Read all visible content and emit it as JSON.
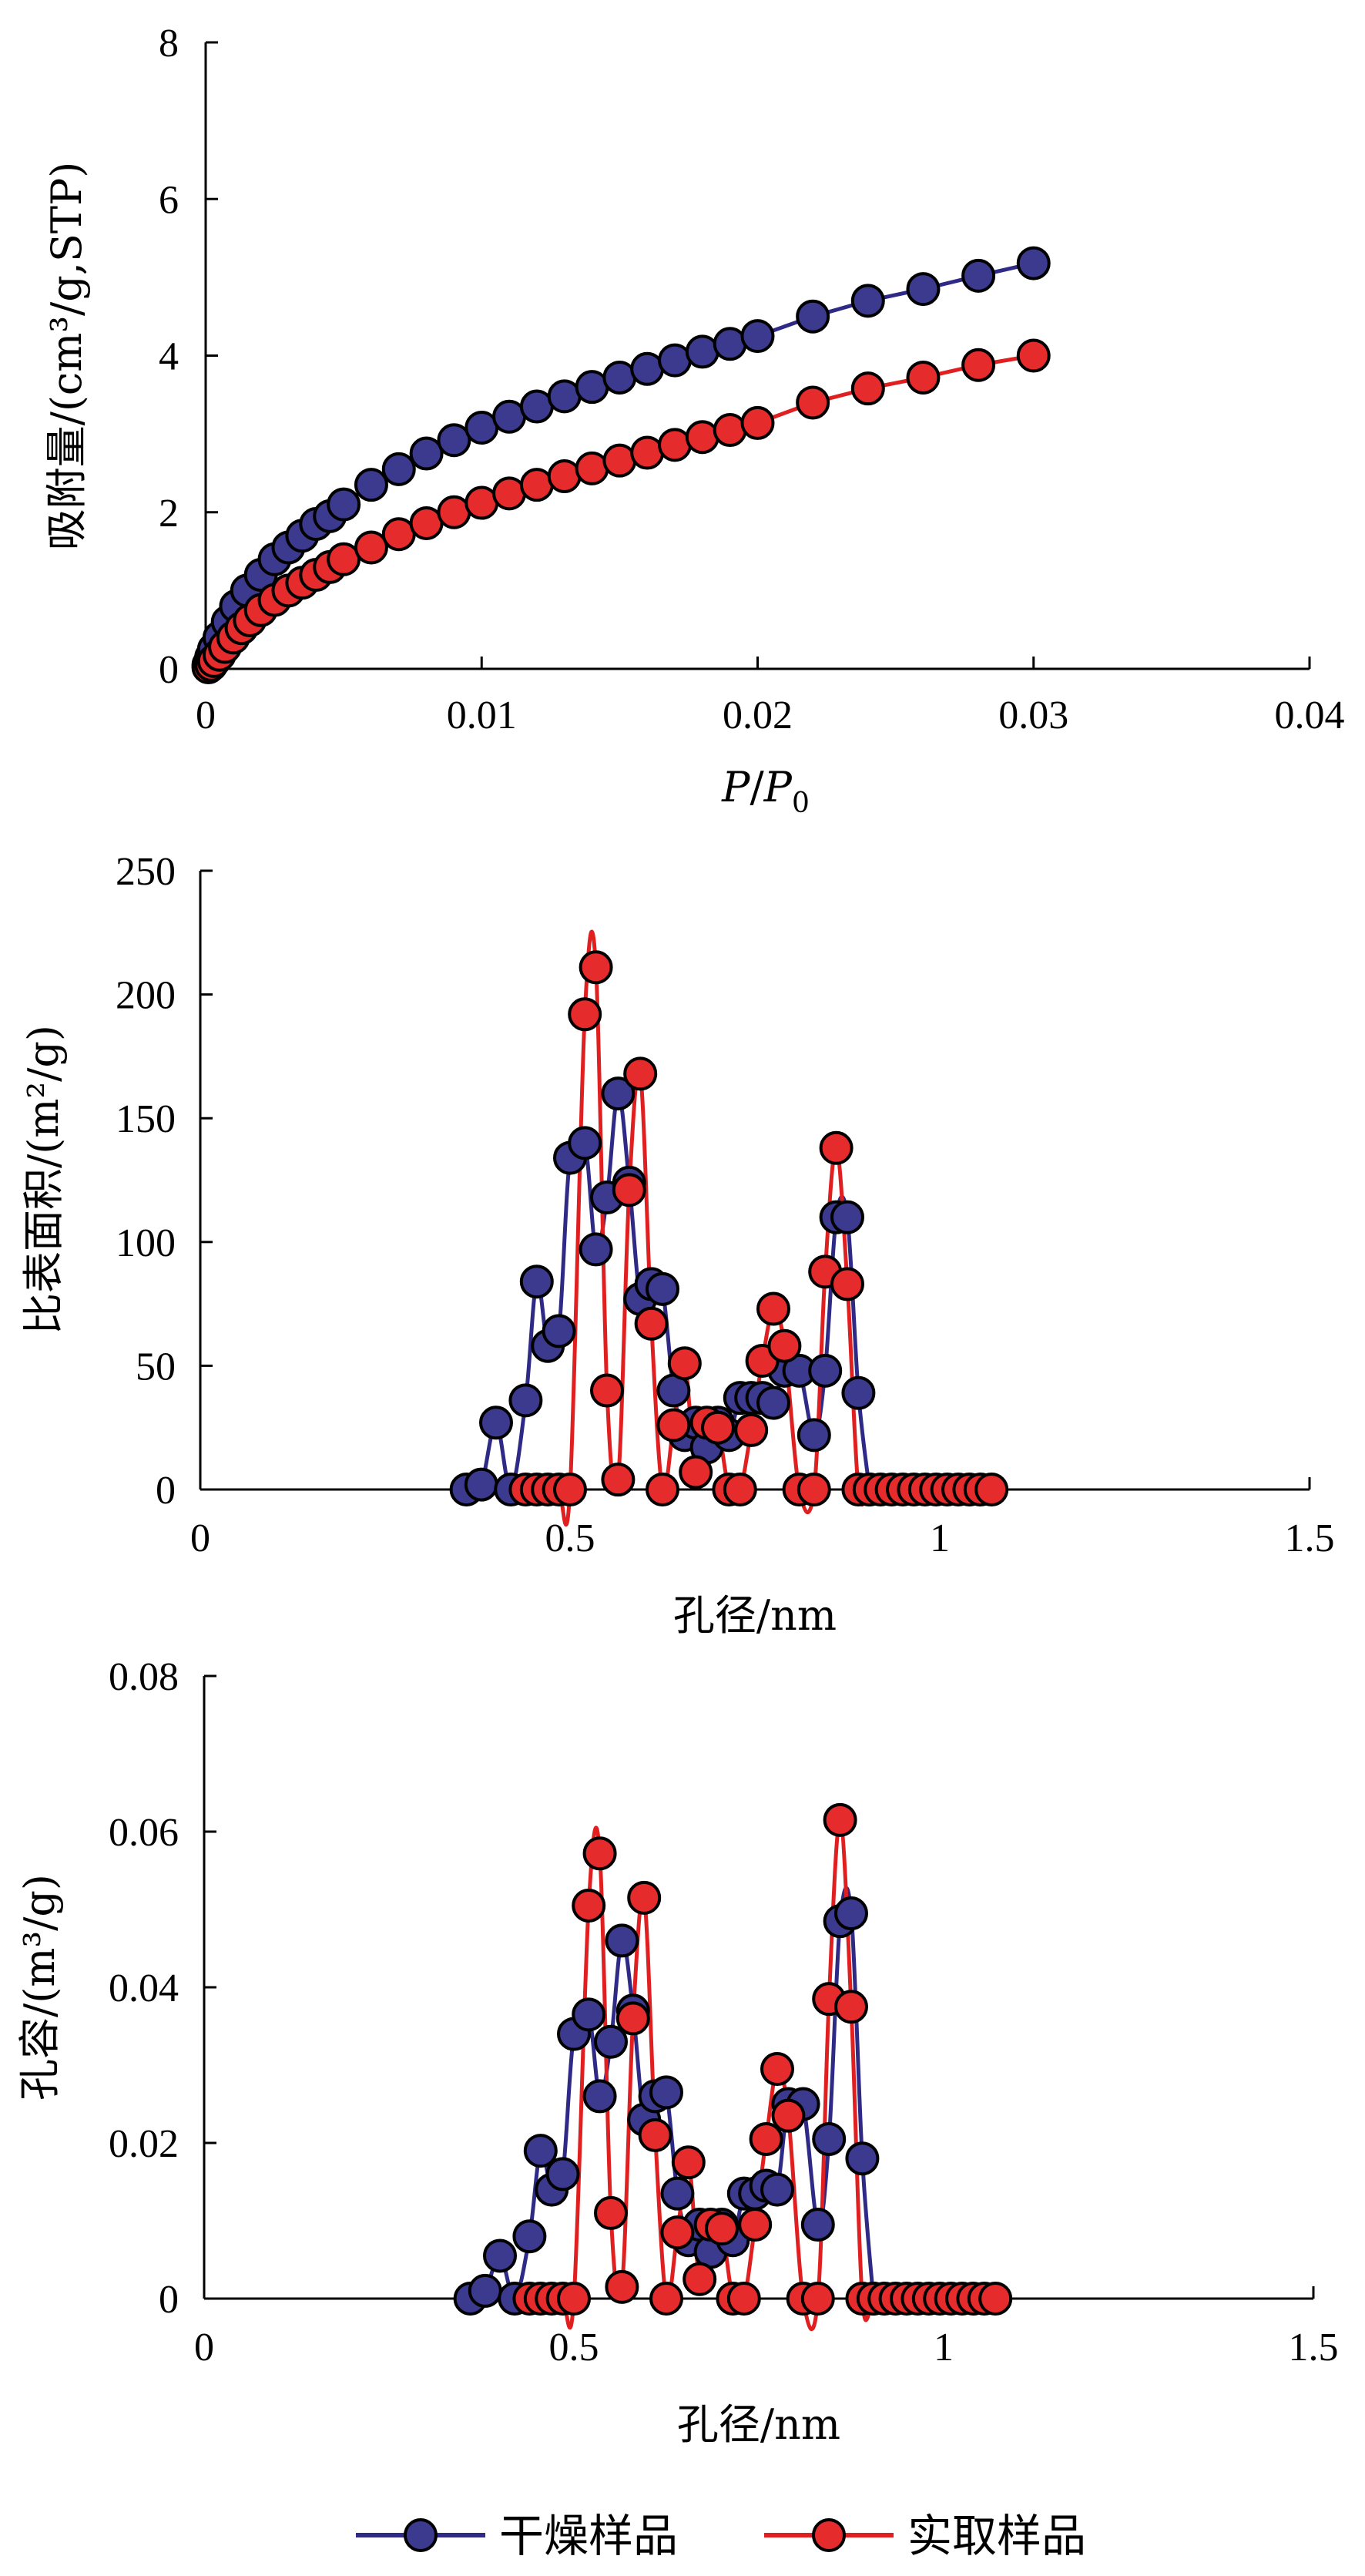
{
  "colors": {
    "dry": "#3b3a8f",
    "dry_line": "#2e2a86",
    "wet": "#e52b2b",
    "wet_line": "#e02020",
    "marker_edge": "#000000"
  },
  "legend": {
    "items": [
      {
        "label": "干燥样品",
        "series": "dry"
      },
      {
        "label": "实取样品",
        "series": "wet"
      }
    ]
  },
  "chart_data": [
    {
      "type": "scatter",
      "name": "adsorption-isotherm",
      "xlabel_parts": [
        "P",
        "/",
        "P",
        "0"
      ],
      "xlabel": "P/P0",
      "ylabel": "吸附量/(cm³/g,STP)",
      "xlim": [
        0,
        0.04
      ],
      "ylim": [
        0,
        8
      ],
      "xticks": [
        0,
        0.01,
        0.02,
        0.03,
        0.04
      ],
      "xtick_labels": [
        "0",
        "0.01",
        "0.02",
        "0.03",
        "0.04"
      ],
      "yticks": [
        0,
        2,
        4,
        6,
        8
      ],
      "ytick_labels": [
        "0",
        "2",
        "4",
        "6",
        "8"
      ],
      "series": [
        {
          "key": "dry",
          "name": "干燥样品",
          "x": [
            0.0001,
            0.0002,
            0.0003,
            0.0005,
            0.0008,
            0.0011,
            0.0015,
            0.002,
            0.0025,
            0.003,
            0.0035,
            0.004,
            0.0045,
            0.005,
            0.006,
            0.007,
            0.008,
            0.009,
            0.01,
            0.011,
            0.012,
            0.013,
            0.014,
            0.015,
            0.016,
            0.017,
            0.018,
            0.019,
            0.02,
            0.022,
            0.024,
            0.026,
            0.028,
            0.03
          ],
          "y": [
            0.05,
            0.15,
            0.25,
            0.4,
            0.6,
            0.8,
            1.0,
            1.2,
            1.4,
            1.55,
            1.7,
            1.85,
            1.95,
            2.1,
            2.35,
            2.55,
            2.75,
            2.92,
            3.08,
            3.22,
            3.35,
            3.48,
            3.6,
            3.72,
            3.83,
            3.94,
            4.05,
            4.15,
            4.25,
            4.5,
            4.7,
            4.85,
            5.02,
            5.18
          ]
        },
        {
          "key": "wet",
          "name": "实取样品",
          "x": [
            0.0001,
            0.0002,
            0.0003,
            0.0005,
            0.0007,
            0.001,
            0.0013,
            0.0016,
            0.002,
            0.0025,
            0.003,
            0.0035,
            0.004,
            0.0045,
            0.005,
            0.006,
            0.007,
            0.008,
            0.009,
            0.01,
            0.011,
            0.012,
            0.013,
            0.014,
            0.015,
            0.016,
            0.017,
            0.018,
            0.019,
            0.02,
            0.022,
            0.024,
            0.026,
            0.028,
            0.03
          ],
          "y": [
            0.02,
            0.05,
            0.1,
            0.18,
            0.28,
            0.4,
            0.52,
            0.62,
            0.75,
            0.88,
            1.0,
            1.1,
            1.2,
            1.3,
            1.4,
            1.55,
            1.72,
            1.86,
            2.0,
            2.12,
            2.24,
            2.35,
            2.46,
            2.56,
            2.66,
            2.76,
            2.86,
            2.96,
            3.05,
            3.14,
            3.4,
            3.58,
            3.72,
            3.88,
            4.0
          ]
        }
      ]
    },
    {
      "type": "line",
      "name": "specific-surface-area",
      "xlabel": "孔径/nm",
      "ylabel": "比表面积/(m²/g)",
      "xlim": [
        0,
        1.5
      ],
      "ylim": [
        0,
        250
      ],
      "xticks": [
        0,
        0.5,
        1,
        1.5
      ],
      "xtick_labels": [
        "0",
        "0.5",
        "1",
        "1.5"
      ],
      "yticks": [
        0,
        50,
        100,
        150,
        200,
        250
      ],
      "ytick_labels": [
        "0",
        "50",
        "100",
        "150",
        "200",
        "250"
      ],
      "series": [
        {
          "key": "dry",
          "name": "干燥样品",
          "x": [
            0.36,
            0.38,
            0.4,
            0.42,
            0.44,
            0.455,
            0.47,
            0.485,
            0.5,
            0.52,
            0.535,
            0.55,
            0.565,
            0.58,
            0.595,
            0.61,
            0.625,
            0.64,
            0.655,
            0.67,
            0.685,
            0.7,
            0.715,
            0.73,
            0.745,
            0.76,
            0.775,
            0.79,
            0.81,
            0.83,
            0.845,
            0.86,
            0.875,
            0.89,
            0.905
          ],
          "y": [
            0,
            2,
            27,
            0,
            36,
            84,
            58,
            64,
            134,
            140,
            97,
            118,
            160,
            124,
            77,
            83,
            81,
            40,
            22,
            27,
            17,
            27,
            22,
            37,
            37,
            37,
            35,
            48,
            48,
            22,
            48,
            110,
            110,
            39,
            0
          ]
        },
        {
          "key": "wet",
          "name": "实取样品",
          "x": [
            0.44,
            0.455,
            0.47,
            0.485,
            0.5,
            0.52,
            0.535,
            0.55,
            0.565,
            0.58,
            0.595,
            0.61,
            0.625,
            0.64,
            0.655,
            0.67,
            0.685,
            0.7,
            0.715,
            0.73,
            0.745,
            0.76,
            0.775,
            0.79,
            0.81,
            0.83,
            0.845,
            0.86,
            0.875,
            0.89,
            0.905,
            0.92,
            0.935,
            0.95,
            0.965,
            0.98,
            0.995,
            1.01,
            1.025,
            1.04,
            1.055,
            1.07
          ],
          "y": [
            0,
            0,
            0,
            0,
            0,
            192,
            211,
            40,
            4,
            121,
            168,
            67,
            0,
            26,
            51,
            7,
            27,
            25,
            0,
            0,
            24,
            52,
            73,
            58,
            0,
            0,
            88,
            138,
            83,
            0,
            0,
            0,
            0,
            0,
            0,
            0,
            0,
            0,
            0,
            0,
            0,
            0
          ]
        }
      ]
    },
    {
      "type": "line",
      "name": "pore-volume",
      "xlabel": "孔径/nm",
      "ylabel": "孔容/(m³/g)",
      "xlim": [
        0,
        1.5
      ],
      "ylim": [
        0,
        0.08
      ],
      "xticks": [
        0,
        0.5,
        1,
        1.5
      ],
      "xtick_labels": [
        "0",
        "0.5",
        "1",
        "1.5"
      ],
      "yticks": [
        0,
        0.02,
        0.04,
        0.06,
        0.08
      ],
      "ytick_labels": [
        "0",
        "0.02",
        "0.04",
        "0.06",
        "0.08"
      ],
      "series": [
        {
          "key": "dry",
          "name": "干燥样品",
          "x": [
            0.36,
            0.38,
            0.4,
            0.42,
            0.44,
            0.455,
            0.47,
            0.485,
            0.5,
            0.52,
            0.535,
            0.55,
            0.565,
            0.58,
            0.595,
            0.61,
            0.625,
            0.64,
            0.655,
            0.67,
            0.685,
            0.7,
            0.715,
            0.73,
            0.745,
            0.76,
            0.775,
            0.79,
            0.81,
            0.83,
            0.845,
            0.86,
            0.875,
            0.89,
            0.905
          ],
          "y": [
            0,
            0.001,
            0.0055,
            0,
            0.008,
            0.019,
            0.014,
            0.016,
            0.034,
            0.0365,
            0.026,
            0.033,
            0.046,
            0.037,
            0.023,
            0.026,
            0.0265,
            0.0135,
            0.0075,
            0.0095,
            0.006,
            0.0095,
            0.0075,
            0.0135,
            0.0135,
            0.0145,
            0.014,
            0.025,
            0.025,
            0.0095,
            0.0205,
            0.0485,
            0.0495,
            0.018,
            0
          ]
        },
        {
          "key": "wet",
          "name": "实取样品",
          "x": [
            0.44,
            0.455,
            0.47,
            0.485,
            0.5,
            0.52,
            0.535,
            0.55,
            0.565,
            0.58,
            0.595,
            0.61,
            0.625,
            0.64,
            0.655,
            0.67,
            0.685,
            0.7,
            0.715,
            0.73,
            0.745,
            0.76,
            0.775,
            0.79,
            0.81,
            0.83,
            0.845,
            0.86,
            0.875,
            0.89,
            0.905,
            0.92,
            0.935,
            0.95,
            0.965,
            0.98,
            0.995,
            1.01,
            1.025,
            1.04,
            1.055,
            1.07
          ],
          "y": [
            0,
            0,
            0,
            0,
            0,
            0.0505,
            0.0572,
            0.011,
            0.0015,
            0.036,
            0.0515,
            0.021,
            0,
            0.0085,
            0.0175,
            0.0025,
            0.0095,
            0.009,
            0,
            0,
            0.0095,
            0.0205,
            0.0295,
            0.0235,
            0,
            0,
            0.0385,
            0.0615,
            0.0375,
            0,
            0,
            0,
            0,
            0,
            0,
            0,
            0,
            0,
            0,
            0,
            0,
            0
          ]
        }
      ]
    }
  ]
}
